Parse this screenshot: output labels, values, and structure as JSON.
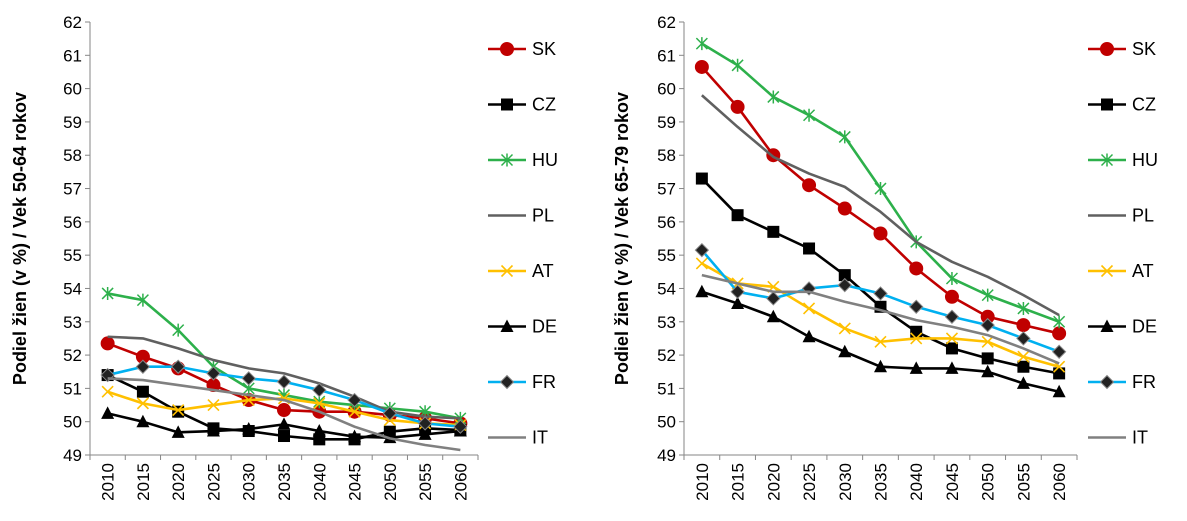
{
  "chart_data": [
    {
      "type": "line",
      "ylabel": "Podiel žien (v %) / Vek 50-64 rokov",
      "xlabel": "",
      "title": "",
      "x": [
        "2010",
        "2015",
        "2020",
        "2025",
        "2030",
        "2035",
        "2040",
        "2045",
        "2050",
        "2055",
        "2060"
      ],
      "ylim": [
        49,
        62
      ],
      "yticks": [
        "49",
        "50",
        "51",
        "52",
        "53",
        "54",
        "55",
        "56",
        "57",
        "58",
        "59",
        "60",
        "61",
        "62"
      ],
      "grid": false,
      "legend": "right",
      "series": [
        {
          "name": "SK",
          "color": "#c00000",
          "marker": "circle",
          "values": [
            52.35,
            51.95,
            51.6,
            51.1,
            50.65,
            50.35,
            50.3,
            50.3,
            50.2,
            50.1,
            49.95
          ]
        },
        {
          "name": "CZ",
          "color": "#000000",
          "marker": "square",
          "values": [
            51.4,
            50.9,
            50.3,
            49.8,
            49.72,
            49.57,
            49.47,
            49.47,
            49.7,
            49.8,
            49.75
          ]
        },
        {
          "name": "HU",
          "color": "#2db04b",
          "marker": "star",
          "values": [
            53.85,
            53.65,
            52.75,
            51.65,
            51.0,
            50.8,
            50.6,
            50.5,
            50.4,
            50.3,
            50.1
          ]
        },
        {
          "name": "PL",
          "color": "#606060",
          "marker": "none",
          "values": [
            52.55,
            52.5,
            52.2,
            51.85,
            51.6,
            51.45,
            51.15,
            50.75,
            50.3,
            50.15,
            50.1
          ]
        },
        {
          "name": "AT",
          "color": "#ffc000",
          "marker": "x",
          "values": [
            50.9,
            50.55,
            50.35,
            50.5,
            50.65,
            50.7,
            50.55,
            50.3,
            50.05,
            49.95,
            49.9
          ]
        },
        {
          "name": "DE",
          "color": "#000000",
          "marker": "triangle",
          "values": [
            50.25,
            50.0,
            49.68,
            49.72,
            49.78,
            49.92,
            49.72,
            49.55,
            49.52,
            49.62,
            49.72
          ]
        },
        {
          "name": "FR",
          "color": "#00b0f0",
          "marker": "diamond",
          "values": [
            51.4,
            51.65,
            51.65,
            51.45,
            51.3,
            51.2,
            50.95,
            50.65,
            50.25,
            49.95,
            49.85
          ]
        },
        {
          "name": "IT",
          "color": "#808080",
          "marker": "none",
          "values": [
            51.3,
            51.25,
            51.1,
            50.95,
            50.8,
            50.65,
            50.3,
            49.85,
            49.5,
            49.3,
            49.15
          ]
        }
      ]
    },
    {
      "type": "line",
      "ylabel": "Podiel žien (v %) / Vek 65-79 rokov",
      "xlabel": "",
      "title": "",
      "x": [
        "2010",
        "2015",
        "2020",
        "2025",
        "2030",
        "2035",
        "2040",
        "2045",
        "2050",
        "2055",
        "2060"
      ],
      "ylim": [
        49,
        62
      ],
      "yticks": [
        "49",
        "50",
        "51",
        "52",
        "53",
        "54",
        "55",
        "56",
        "57",
        "58",
        "59",
        "60",
        "61",
        "62"
      ],
      "grid": false,
      "legend": "right",
      "series": [
        {
          "name": "SK",
          "color": "#c00000",
          "marker": "circle",
          "values": [
            60.65,
            59.45,
            58.0,
            57.1,
            56.4,
            55.65,
            54.6,
            53.75,
            53.15,
            52.9,
            52.65
          ]
        },
        {
          "name": "CZ",
          "color": "#000000",
          "marker": "square",
          "values": [
            57.3,
            56.2,
            55.7,
            55.2,
            54.4,
            53.45,
            52.7,
            52.2,
            51.9,
            51.65,
            51.45
          ]
        },
        {
          "name": "HU",
          "color": "#2db04b",
          "marker": "star",
          "values": [
            61.35,
            60.7,
            59.75,
            59.2,
            58.55,
            57.0,
            55.4,
            54.3,
            53.8,
            53.4,
            53.0
          ]
        },
        {
          "name": "PL",
          "color": "#606060",
          "marker": "none",
          "values": [
            59.8,
            58.85,
            57.95,
            57.45,
            57.05,
            56.3,
            55.4,
            54.8,
            54.35,
            53.8,
            53.2
          ]
        },
        {
          "name": "AT",
          "color": "#ffc000",
          "marker": "x",
          "values": [
            54.75,
            54.15,
            54.05,
            53.4,
            52.8,
            52.4,
            52.5,
            52.5,
            52.4,
            51.95,
            51.65
          ]
        },
        {
          "name": "DE",
          "color": "#000000",
          "marker": "triangle",
          "values": [
            53.9,
            53.55,
            53.15,
            52.55,
            52.1,
            51.65,
            51.6,
            51.6,
            51.5,
            51.15,
            50.9
          ]
        },
        {
          "name": "FR",
          "color": "#00b0f0",
          "marker": "diamond",
          "values": [
            55.15,
            53.9,
            53.7,
            54.0,
            54.1,
            53.85,
            53.45,
            53.15,
            52.9,
            52.5,
            52.1
          ]
        },
        {
          "name": "IT",
          "color": "#808080",
          "marker": "none",
          "values": [
            54.4,
            54.15,
            53.9,
            53.9,
            53.6,
            53.35,
            53.05,
            52.85,
            52.6,
            52.2,
            51.75
          ]
        }
      ]
    }
  ]
}
